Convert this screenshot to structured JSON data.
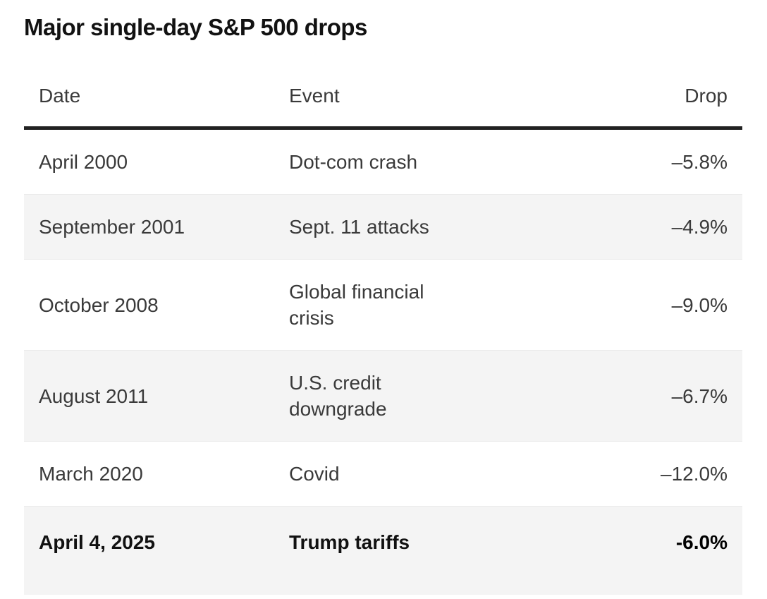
{
  "title": "Major single-day S&P 500 drops",
  "table": {
    "columns": [
      {
        "key": "date",
        "label": "Date"
      },
      {
        "key": "event",
        "label": "Event"
      },
      {
        "key": "drop",
        "label": "Drop"
      }
    ],
    "rows": [
      {
        "date": "April 2000",
        "event": "Dot-com crash",
        "drop": "–5.8%",
        "emphasis": false
      },
      {
        "date": "September 2001",
        "event": "Sept. 11 attacks",
        "drop": "–4.9%",
        "emphasis": false
      },
      {
        "date": "October 2008",
        "event": "Global financial crisis",
        "drop": "–9.0%",
        "emphasis": false
      },
      {
        "date": "August 2011",
        "event": "U.S. credit downgrade",
        "drop": "–6.7%",
        "emphasis": false
      },
      {
        "date": "March 2020",
        "event": "Covid",
        "drop": "–12.0%",
        "emphasis": false
      },
      {
        "date": "April 4, 2025",
        "event": "Trump tariffs",
        "drop": "-6.0%",
        "emphasis": true
      }
    ]
  },
  "chart_data": {
    "type": "table",
    "title": "Major single-day S&P 500 drops",
    "columns": [
      "Date",
      "Event",
      "Drop"
    ],
    "rows": [
      [
        "April 2000",
        "Dot-com crash",
        "–5.8%"
      ],
      [
        "September 2001",
        "Sept. 11 attacks",
        "–4.9%"
      ],
      [
        "October 2008",
        "Global financial crisis",
        "–9.0%"
      ],
      [
        "August 2011",
        "U.S. credit downgrade",
        "–6.7%"
      ],
      [
        "March 2020",
        "Covid",
        "–12.0%"
      ],
      [
        "April 4, 2025",
        "Trump tariffs",
        "-6.0%"
      ]
    ],
    "drop_values_pct": [
      -5.8,
      -4.9,
      -9.0,
      -6.7,
      -12.0,
      -6.0
    ],
    "layout_hints": {
      "zebra_striping": true,
      "last_row_bold": true,
      "drop_column_align": "right"
    }
  },
  "colors": {
    "background": "#ffffff",
    "stripe": "#f4f4f4",
    "header_rule": "#222222",
    "body_text": "#3a3a3a",
    "title_text": "#121212",
    "emphasis_text": "#111111",
    "emphasis_drop": "#000000"
  }
}
